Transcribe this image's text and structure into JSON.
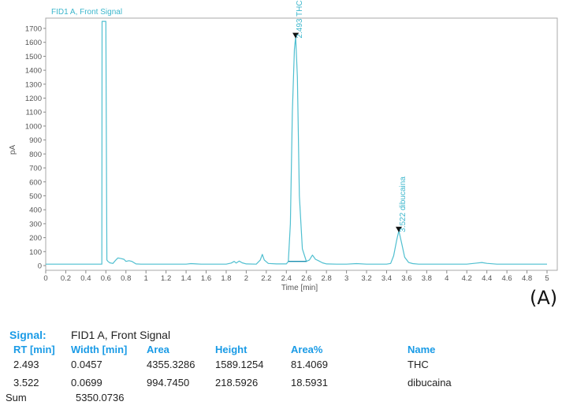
{
  "chart_data": {
    "type": "line",
    "title": "FID1 A, Front Signal",
    "xlabel": "Time [min]",
    "ylabel": "pA",
    "xlim": [
      0,
      5
    ],
    "ylim": [
      0,
      1750
    ],
    "x_ticks": [
      "0",
      "0.2",
      "0.4",
      "0.6",
      "0.8",
      "1",
      "1.2",
      "1.4",
      "1.6",
      "1.8",
      "2",
      "2.2",
      "2.4",
      "2.6",
      "2.8",
      "3",
      "3.2",
      "3.4",
      "3.6",
      "3.8",
      "4",
      "4.2",
      "4.4",
      "4.6",
      "4.8",
      "5"
    ],
    "y_ticks": [
      "0",
      "100",
      "200",
      "300",
      "400",
      "500",
      "600",
      "700",
      "800",
      "900",
      "1000",
      "1100",
      "1200",
      "1300",
      "1400",
      "1500",
      "1600",
      "1700"
    ],
    "grid": false,
    "series": [
      {
        "name": "FID1 A, Front Signal",
        "color": "#4fbfd0",
        "x": [
          0,
          0.56,
          0.562,
          0.6,
          0.61,
          0.62,
          0.64,
          0.67,
          0.7,
          0.72,
          0.75,
          0.78,
          0.8,
          0.83,
          0.86,
          0.9,
          0.95,
          1.0,
          1.2,
          1.4,
          1.45,
          1.5,
          1.55,
          1.6,
          1.8,
          1.85,
          1.88,
          1.9,
          1.93,
          1.96,
          2.0,
          2.1,
          2.14,
          2.16,
          2.18,
          2.22,
          2.3,
          2.4,
          2.42,
          2.44,
          2.46,
          2.48,
          2.493,
          2.51,
          2.53,
          2.56,
          2.6,
          2.63,
          2.66,
          2.69,
          2.72,
          2.76,
          2.8,
          2.9,
          3.0,
          3.1,
          3.2,
          3.3,
          3.4,
          3.44,
          3.47,
          3.5,
          3.522,
          3.55,
          3.58,
          3.62,
          3.66,
          3.72,
          3.8,
          4.0,
          4.2,
          4.3,
          4.35,
          4.4,
          4.5,
          4.7,
          5.0
        ],
        "values": [
          10,
          10,
          1750,
          1750,
          40,
          30,
          20,
          15,
          40,
          55,
          50,
          45,
          30,
          35,
          30,
          12,
          10,
          10,
          10,
          10,
          14,
          12,
          10,
          10,
          10,
          18,
          30,
          18,
          32,
          20,
          12,
          10,
          40,
          80,
          40,
          15,
          12,
          12,
          30,
          300,
          1100,
          1550,
          1640,
          1350,
          500,
          120,
          30,
          40,
          75,
          45,
          35,
          20,
          12,
          10,
          10,
          14,
          10,
          10,
          10,
          15,
          70,
          180,
          250,
          160,
          60,
          22,
          14,
          10,
          10,
          10,
          10,
          18,
          22,
          16,
          10,
          10,
          10
        ]
      }
    ],
    "annotations": [
      {
        "x": 2.493,
        "y": 1640,
        "text": "2.493 THC",
        "marker": "triangle-down"
      },
      {
        "x": 3.522,
        "y": 250,
        "text": "3.522 dibucaina",
        "marker": "triangle-down"
      }
    ],
    "baselines": [
      {
        "from": [
          2.42,
          30
        ],
        "to": [
          2.6,
          30
        ]
      }
    ]
  },
  "panel_label": "(A)",
  "results_table": {
    "signal_label": "Signal:",
    "signal_value": "FID1 A, Front Signal",
    "headers": [
      "RT [min]",
      "Width [min]",
      "Area",
      "Height",
      "Area%",
      "Name"
    ],
    "rows": [
      [
        "2.493",
        "0.0457",
        "4355.3286",
        "1589.1254",
        "81.4069",
        "THC"
      ],
      [
        "3.522",
        "0.0699",
        "994.7450",
        "218.5926",
        "18.5931",
        "dibucaina"
      ]
    ],
    "sum_label": "Sum",
    "sum_value": "5350.0736"
  }
}
